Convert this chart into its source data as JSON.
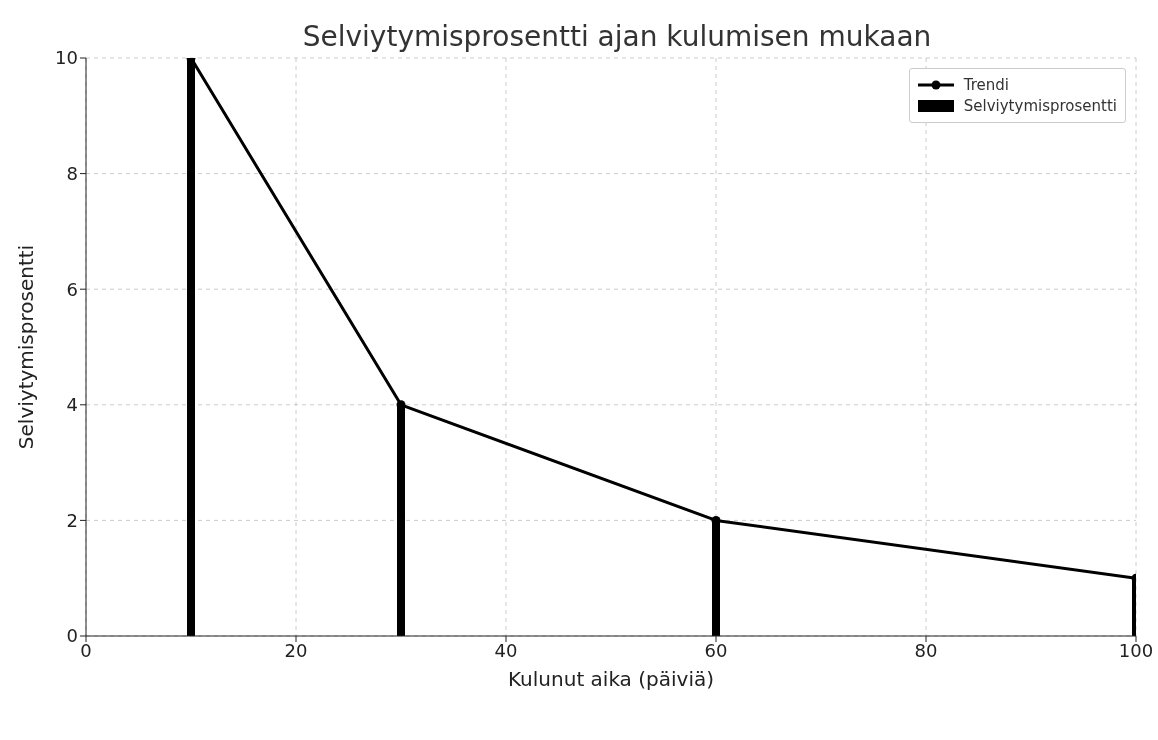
{
  "chart_data": {
    "type": "bar",
    "title": "Selviytymisprosentti ajan kulumisen mukaan",
    "xlabel": "Kulunut aika (päiviä)",
    "ylabel": "Selviytymisprosentti",
    "x": [
      10,
      30,
      60,
      100
    ],
    "series": [
      {
        "name": "Trendi",
        "type": "line",
        "color": "#000000",
        "values": [
          10,
          4,
          2,
          1
        ]
      },
      {
        "name": "Selviytymisprosentti",
        "color": "#000000",
        "values": [
          10,
          4,
          2,
          1
        ]
      }
    ],
    "xlim": [
      0,
      100
    ],
    "xticks": [
      0,
      20,
      40,
      60,
      80,
      100
    ],
    "ylim": [
      0,
      10
    ],
    "yticks": [
      0,
      2,
      4,
      6,
      8,
      10
    ],
    "grid": true,
    "legend": "top right",
    "marker": "circle",
    "line_style": "solid"
  }
}
